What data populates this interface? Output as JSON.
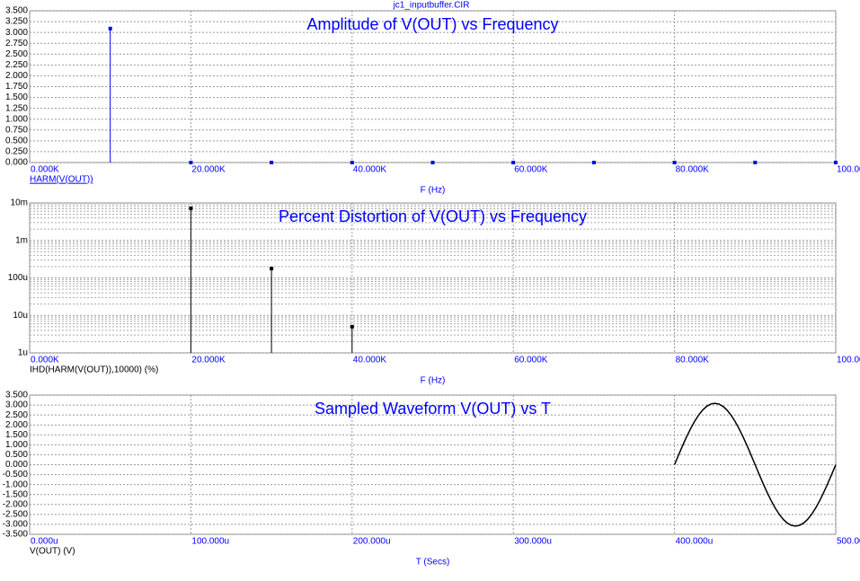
{
  "title": "jc1_inputbuffer.CIR",
  "chart_data": [
    {
      "type": "stem",
      "title": "Amplitude of V(OUT) vs Frequency",
      "xlabel": "F (Hz)",
      "title_color": "#0000ff",
      "series_label_color": "#0000ff",
      "x": [
        10000,
        20000,
        30000,
        40000,
        50000,
        60000,
        70000,
        80000,
        90000,
        100000
      ],
      "series": [
        {
          "name": "HARM(V(OUT))",
          "color": "#0000ff",
          "values": [
            3.09,
            0,
            0,
            0,
            0,
            0,
            0,
            0,
            0,
            0
          ]
        }
      ],
      "xlim": [
        0,
        100000
      ],
      "xticks": [
        {
          "value": 0,
          "label": "0.000K"
        },
        {
          "value": 20000,
          "label": "20.000K"
        },
        {
          "value": 40000,
          "label": "40.000K"
        },
        {
          "value": 60000,
          "label": "60.000K"
        },
        {
          "value": 80000,
          "label": "80.000K"
        },
        {
          "value": 100000,
          "label": "100.000K"
        }
      ],
      "ylim": [
        0,
        3.5
      ],
      "yticks": [
        {
          "value": 0,
          "label": "0.000"
        },
        {
          "value": 0.25,
          "label": "0.250"
        },
        {
          "value": 0.5,
          "label": "0.500"
        },
        {
          "value": 0.75,
          "label": "0.750"
        },
        {
          "value": 1,
          "label": "1.000"
        },
        {
          "value": 1.25,
          "label": "1.250"
        },
        {
          "value": 1.5,
          "label": "1.500"
        },
        {
          "value": 1.75,
          "label": "1.750"
        },
        {
          "value": 2,
          "label": "2.000"
        },
        {
          "value": 2.25,
          "label": "2.250"
        },
        {
          "value": 2.5,
          "label": "2.500"
        },
        {
          "value": 2.75,
          "label": "2.750"
        },
        {
          "value": 3,
          "label": "3.000"
        },
        {
          "value": 3.25,
          "label": "3.250"
        },
        {
          "value": 3.5,
          "label": "3.500"
        }
      ],
      "grid": true
    },
    {
      "type": "stem",
      "title": "Percent Distortion of V(OUT) vs Frequency",
      "xlabel": "F (Hz)",
      "title_color": "#0000ff",
      "series_label_color": "#000000",
      "log_scale_y": true,
      "x": [
        20000,
        30000,
        40000
      ],
      "series": [
        {
          "name": "IHD(HARM(V(OUT)),10000) (%)",
          "color": "#000000",
          "values": [
            0.0072,
            0.000178,
            5e-06
          ]
        }
      ],
      "xlim": [
        0,
        100000
      ],
      "xticks": [
        {
          "value": 0,
          "label": "0.000K"
        },
        {
          "value": 20000,
          "label": "20.000K"
        },
        {
          "value": 40000,
          "label": "40.000K"
        },
        {
          "value": 60000,
          "label": "60.000K"
        },
        {
          "value": 80000,
          "label": "80.000K"
        },
        {
          "value": 100000,
          "label": "100.000K"
        }
      ],
      "ylim": [
        1e-06,
        0.01
      ],
      "yticks": [
        {
          "value": 1e-06,
          "label": "1u"
        },
        {
          "value": 1e-05,
          "label": "10u"
        },
        {
          "value": 0.0001,
          "label": "100u"
        },
        {
          "value": 0.001,
          "label": "1m"
        },
        {
          "value": 0.01,
          "label": "10m"
        }
      ],
      "grid": true
    },
    {
      "type": "line",
      "title": "Sampled Waveform  V(OUT) vs T",
      "xlabel": "T (Secs)",
      "title_color": "#0000ff",
      "series_label_color": "#000000",
      "x": [
        0.0004,
        0.0004025,
        0.000405,
        0.0004075,
        0.00041,
        0.0004125,
        0.000415,
        0.0004175,
        0.00042,
        0.0004225,
        0.000425,
        0.0004275,
        0.00043,
        0.0004325,
        0.000435,
        0.0004375,
        0.00044,
        0.0004425,
        0.000445,
        0.0004475,
        0.00045,
        0.0004525,
        0.000455,
        0.0004575,
        0.00046,
        0.0004625,
        0.000465,
        0.0004675,
        0.00047,
        0.0004725,
        0.000475,
        0.0004775,
        0.00048,
        0.0004825,
        0.000485,
        0.0004875,
        0.00049,
        0.0004925,
        0.000495,
        0.0004975,
        0.0005
      ],
      "series": [
        {
          "name": "V(OUT) (V)",
          "color": "#000000",
          "values": [
            0,
            0.483,
            0.955,
            1.403,
            1.816,
            2.185,
            2.5,
            2.753,
            2.939,
            3.052,
            3.09,
            3.052,
            2.939,
            2.753,
            2.5,
            2.185,
            1.816,
            1.403,
            0.955,
            0.483,
            0,
            -0.483,
            -0.955,
            -1.403,
            -1.816,
            -2.185,
            -2.5,
            -2.753,
            -2.939,
            -3.052,
            -3.09,
            -3.052,
            -2.939,
            -2.753,
            -2.5,
            -2.185,
            -1.816,
            -1.403,
            -0.955,
            -0.483,
            0
          ]
        }
      ],
      "xlim": [
        0,
        0.0005
      ],
      "xticks": [
        {
          "value": 0,
          "label": "0.000u"
        },
        {
          "value": 0.0001,
          "label": "100.000u"
        },
        {
          "value": 0.0002,
          "label": "200.000u"
        },
        {
          "value": 0.0003,
          "label": "300.000u"
        },
        {
          "value": 0.0004,
          "label": "400.000u"
        },
        {
          "value": 0.0005,
          "label": "500.000u"
        }
      ],
      "ylim": [
        -3.5,
        3.5
      ],
      "yticks": [
        {
          "value": -3.5,
          "label": "-3.500"
        },
        {
          "value": -3,
          "label": "-3.000"
        },
        {
          "value": -2.5,
          "label": "-2.500"
        },
        {
          "value": -2,
          "label": "-2.000"
        },
        {
          "value": -1.5,
          "label": "-1.500"
        },
        {
          "value": -1,
          "label": "-1.000"
        },
        {
          "value": -0.5,
          "label": "-0.500"
        },
        {
          "value": 0,
          "label": "0.000"
        },
        {
          "value": 0.5,
          "label": "0.500"
        },
        {
          "value": 1,
          "label": "1.000"
        },
        {
          "value": 1.5,
          "label": "1.500"
        },
        {
          "value": 2,
          "label": "2.000"
        },
        {
          "value": 2.5,
          "label": "2.500"
        },
        {
          "value": 3,
          "label": "3.000"
        },
        {
          "value": 3.5,
          "label": "3.500"
        }
      ],
      "grid": true
    }
  ]
}
